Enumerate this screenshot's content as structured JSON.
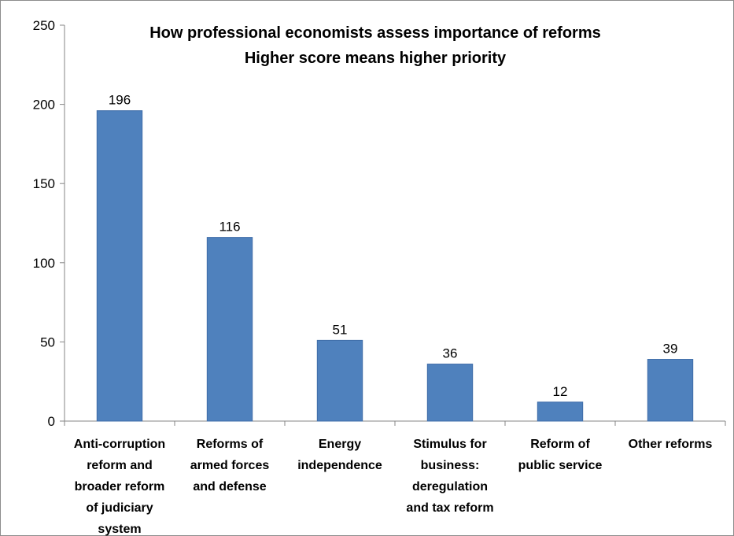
{
  "chart_data": {
    "type": "bar",
    "title_lines": [
      "How professional economists assess  importance of reforms",
      "Higher score means higher priority"
    ],
    "categories": [
      [
        "Anti-corruption",
        "reform and",
        "broader reform",
        "of judiciary",
        "system"
      ],
      [
        "Reforms of",
        "armed forces",
        "and defense"
      ],
      [
        "Energy",
        "independence"
      ],
      [
        "Stimulus for",
        "business:",
        "deregulation",
        "and tax reform"
      ],
      [
        "Reform of",
        "public service"
      ],
      [
        "Other reforms"
      ]
    ],
    "values": [
      196,
      116,
      51,
      36,
      12,
      39
    ],
    "data_labels": [
      "196",
      "116",
      "51",
      "36",
      "12",
      "39"
    ],
    "ylim": [
      0,
      250
    ],
    "y_ticks": [
      0,
      50,
      100,
      150,
      200,
      250
    ],
    "y_tick_labels": [
      "0",
      "50",
      "100",
      "150",
      "200",
      "250"
    ],
    "grid": false,
    "legend": false,
    "bar_color": "#4f81bd",
    "bar_edge_color": "#3f6da8"
  }
}
